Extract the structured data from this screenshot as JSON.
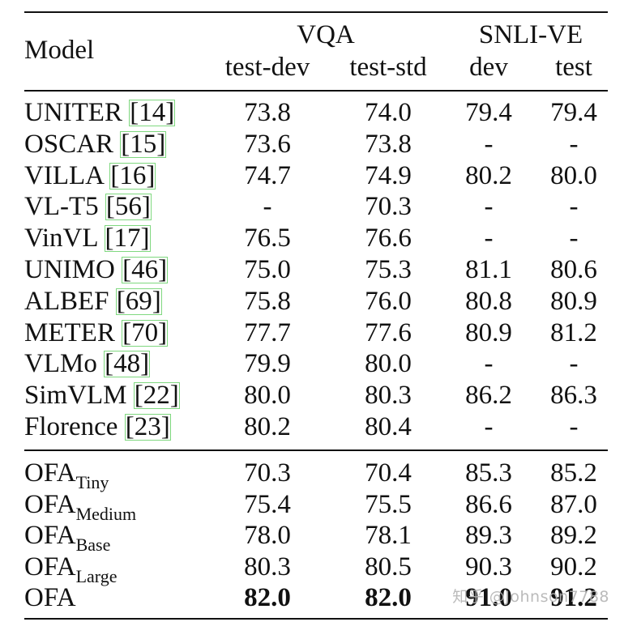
{
  "header": {
    "model": "Model",
    "vqa": "VQA",
    "snli": "SNLI-VE",
    "testdev": "test-dev",
    "teststd": "test-std",
    "dev": "dev",
    "test": "test"
  },
  "rows_top": [
    {
      "name": "UNITER",
      "ref": "[14]",
      "v1": "73.8",
      "v2": "74.0",
      "s1": "79.4",
      "s2": "79.4"
    },
    {
      "name": "OSCAR",
      "ref": "[15]",
      "v1": "73.6",
      "v2": "73.8",
      "s1": "-",
      "s2": "-"
    },
    {
      "name": "VILLA",
      "ref": "[16]",
      "v1": "74.7",
      "v2": "74.9",
      "s1": "80.2",
      "s2": "80.0"
    },
    {
      "name": "VL-T5",
      "ref": "[56]",
      "v1": "-",
      "v2": "70.3",
      "s1": "-",
      "s2": "-"
    },
    {
      "name": "VinVL",
      "ref": "[17]",
      "v1": "76.5",
      "v2": "76.6",
      "s1": "-",
      "s2": "-"
    },
    {
      "name": "UNIMO",
      "ref": "[46]",
      "v1": "75.0",
      "v2": "75.3",
      "s1": "81.1",
      "s2": "80.6"
    },
    {
      "name": "ALBEF",
      "ref": "[69]",
      "v1": "75.8",
      "v2": "76.0",
      "s1": "80.8",
      "s2": "80.9"
    },
    {
      "name": "METER",
      "ref": "[70]",
      "v1": "77.7",
      "v2": "77.6",
      "s1": "80.9",
      "s2": "81.2"
    },
    {
      "name": "VLMo",
      "ref": "[48]",
      "v1": "79.9",
      "v2": "80.0",
      "s1": "-",
      "s2": "-"
    },
    {
      "name": "SimVLM",
      "ref": "[22]",
      "v1": "80.0",
      "v2": "80.3",
      "s1": "86.2",
      "s2": "86.3"
    },
    {
      "name": "Florence",
      "ref": "[23]",
      "v1": "80.2",
      "v2": "80.4",
      "s1": "-",
      "s2": "-"
    }
  ],
  "rows_bottom": [
    {
      "name": "OFA",
      "sub": "Tiny",
      "v1": "70.3",
      "v2": "70.4",
      "s1": "85.3",
      "s2": "85.2"
    },
    {
      "name": "OFA",
      "sub": "Medium",
      "v1": "75.4",
      "v2": "75.5",
      "s1": "86.6",
      "s2": "87.0"
    },
    {
      "name": "OFA",
      "sub": "Base",
      "v1": "78.0",
      "v2": "78.1",
      "s1": "89.3",
      "s2": "89.2"
    },
    {
      "name": "OFA",
      "sub": "Large",
      "v1": "80.3",
      "v2": "80.5",
      "s1": "90.3",
      "s2": "90.2"
    },
    {
      "name": "OFA",
      "sub": "",
      "v1": "82.0",
      "v2": "82.0",
      "s1": "91.0",
      "s2": "91.2"
    }
  ],
  "watermark": "知乎 @Johnson7788"
}
